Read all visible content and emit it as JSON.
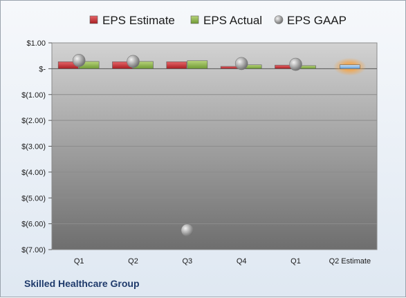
{
  "company": "Skilled Healthcare Group",
  "chart_data": {
    "type": "bar",
    "categories": [
      "Q1",
      "Q2",
      "Q3",
      "Q4",
      "Q1",
      "Q2 Estimate"
    ],
    "series": [
      {
        "name": "EPS Estimate",
        "type": "bar",
        "color": "#c0282d",
        "values": [
          0.27,
          0.27,
          0.27,
          0.09,
          0.14,
          null
        ]
      },
      {
        "name": "EPS Actual",
        "type": "bar",
        "color": "#8ab04a",
        "values": [
          0.28,
          0.28,
          0.31,
          0.15,
          0.12,
          0.15
        ]
      },
      {
        "name": "EPS GAAP",
        "type": "scatter",
        "color": "#9a9a9a",
        "values": [
          0.32,
          0.28,
          -6.25,
          0.2,
          0.17,
          null
        ]
      }
    ],
    "estimate_bar_color": "#7fb2e0",
    "estimate_highlight_color": "#f3a54a",
    "y_ticks": [
      "$1.00",
      "$-",
      "$(1.00)",
      "$(2.00)",
      "$(3.00)",
      "$(4.00)",
      "$(5.00)",
      "$(6.00)",
      "$(7.00)"
    ],
    "y_tick_values": [
      1,
      0,
      -1,
      -2,
      -3,
      -4,
      -5,
      -6,
      -7
    ],
    "ylim": [
      -7,
      1
    ],
    "grid": true,
    "legend_position": "top"
  }
}
